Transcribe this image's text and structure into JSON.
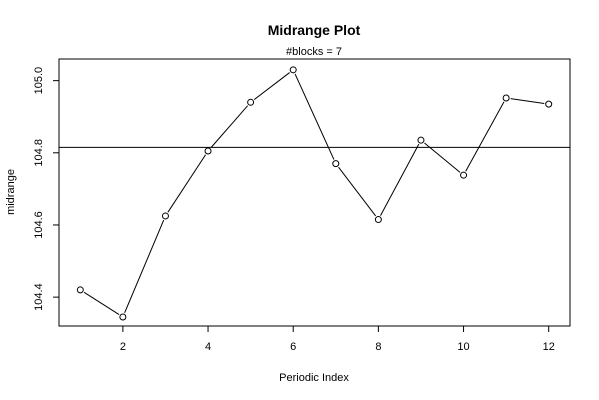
{
  "chart_data": {
    "type": "line",
    "title": "Midrange Plot",
    "subtitle": "#blocks =  7",
    "xlabel": "Periodic Index",
    "ylabel": "midrange",
    "x": [
      1,
      2,
      3,
      4,
      5,
      6,
      7,
      8,
      9,
      10,
      11,
      12
    ],
    "series": [
      {
        "values": [
          104.42,
          104.345,
          104.625,
          104.805,
          104.94,
          105.03,
          104.77,
          104.615,
          104.835,
          104.738,
          104.952,
          104.935
        ]
      }
    ],
    "reference_line": 104.815,
    "xlim": [
      0.5,
      12.5
    ],
    "ylim": [
      104.32,
      105.06
    ],
    "x_ticks": [
      "2",
      "4",
      "6",
      "8",
      "10",
      "12"
    ],
    "y_ticks": [
      "104.4",
      "104.6",
      "104.8",
      "105.0"
    ],
    "grid": false,
    "markers": "open-circle",
    "line_color": "#000000"
  }
}
